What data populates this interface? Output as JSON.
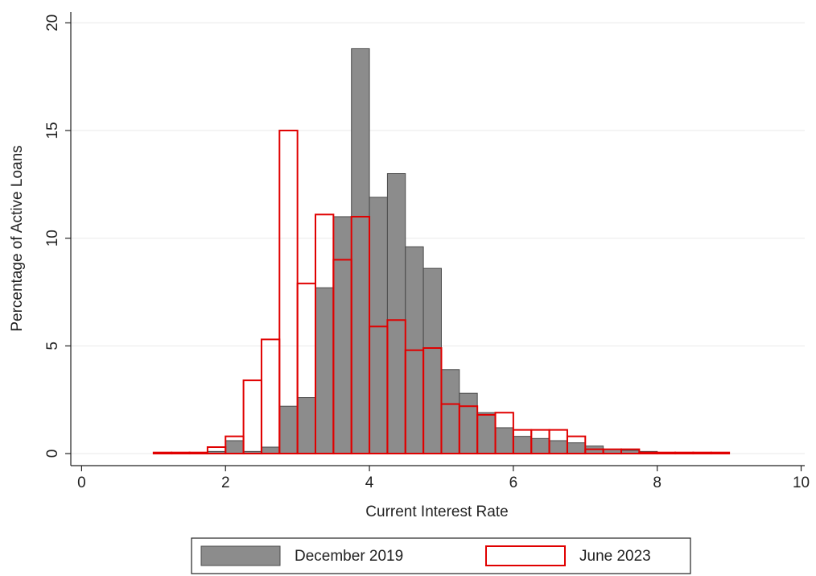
{
  "chart_data": {
    "type": "histogram",
    "xlabel": "Current Interest Rate",
    "ylabel": "Percentage of Active Loans",
    "bins": [
      1.0,
      1.25,
      1.5,
      1.75,
      2.0,
      2.25,
      2.5,
      2.75,
      3.0,
      3.25,
      3.5,
      3.75,
      4.0,
      4.25,
      4.5,
      4.75,
      5.0,
      5.25,
      5.5,
      5.75,
      6.0,
      6.25,
      6.5,
      6.75,
      7.0,
      7.25,
      7.5,
      7.75,
      8.0,
      8.25,
      8.5,
      8.75,
      9.0
    ],
    "series": [
      {
        "name": "December 2019",
        "color": "#8c8c8c",
        "fill": true,
        "values": [
          0.05,
          0.05,
          0.05,
          0.1,
          0.6,
          0.1,
          0.3,
          2.2,
          2.6,
          7.7,
          11.0,
          18.8,
          11.9,
          13.0,
          9.6,
          8.6,
          3.9,
          2.8,
          1.9,
          1.2,
          0.8,
          0.7,
          0.6,
          0.5,
          0.35,
          0.2,
          0.15,
          0.1,
          0.05,
          0.05,
          0.05,
          0.05
        ]
      },
      {
        "name": "June 2023",
        "color": "#e00000",
        "fill": false,
        "values": [
          0.05,
          0.05,
          0.05,
          0.3,
          0.8,
          3.4,
          5.3,
          15.0,
          7.9,
          11.1,
          9.0,
          11.0,
          5.9,
          6.2,
          4.8,
          4.9,
          2.3,
          2.2,
          1.8,
          1.9,
          1.1,
          1.1,
          1.1,
          0.8,
          0.2,
          0.2,
          0.2,
          0.05,
          0.05,
          0.05,
          0.05,
          0.05
        ]
      }
    ],
    "xlim": [
      -0.15,
      10.05
    ],
    "xticks": [
      0,
      2,
      4,
      6,
      8,
      10
    ],
    "ylim": [
      -0.56,
      20.5
    ],
    "yticks": [
      0,
      5,
      10,
      15,
      20
    ],
    "grid": true,
    "legend": "bottom"
  }
}
